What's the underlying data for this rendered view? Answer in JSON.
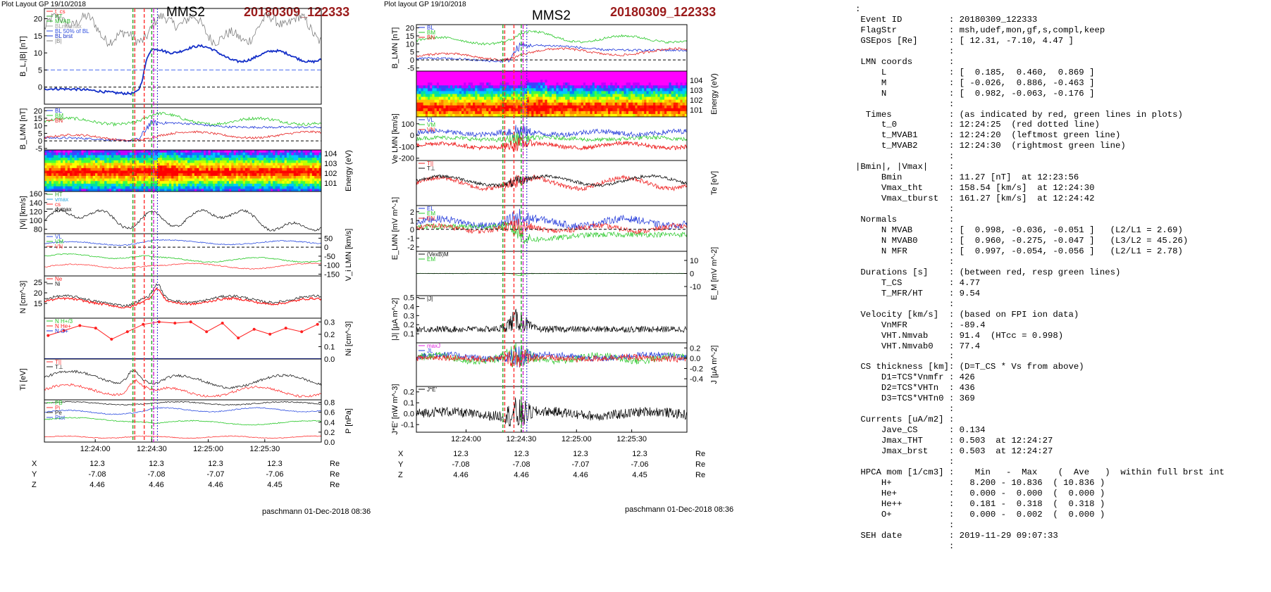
{
  "figures": [
    {
      "header": "Plot Layout GP 19/10/2018",
      "spacecraft": "MMS2",
      "event": "20180309_122333",
      "time_ticks": [
        "12:24:00",
        "12:24:30",
        "12:25:00",
        "12:25:30"
      ],
      "coords": [
        {
          "name": "X",
          "values": [
            "12.3",
            "12.3",
            "12.3",
            "12.3"
          ],
          "unit": "Re"
        },
        {
          "name": "Y",
          "values": [
            "-7.08",
            "-7.08",
            "-7.07",
            "-7.06"
          ],
          "unit": "Re"
        },
        {
          "name": "Z",
          "values": [
            "4.46",
            "4.46",
            "4.46",
            "4.45"
          ],
          "unit": "Re"
        }
      ],
      "footer": "paschmann 01-Dec-2018 08:36"
    },
    {
      "header": "Plot layout GP 19/10/2018",
      "spacecraft": "MMS2",
      "event": "20180309_122333",
      "time_ticks": [
        "12:24:00",
        "12:24:30",
        "12:25:00",
        "12:25:30"
      ],
      "coords": [
        {
          "name": "X",
          "values": [
            "12.3",
            "12.3",
            "12.3",
            "12.3"
          ],
          "unit": "Re"
        },
        {
          "name": "Y",
          "values": [
            "-7.08",
            "-7.08",
            "-7.07",
            "-7.06"
          ],
          "unit": "Re"
        },
        {
          "name": "Z",
          "values": [
            "4.46",
            "4.46",
            "4.46",
            "4.45"
          ],
          "unit": "Re"
        }
      ],
      "footer": "paschmann 01-Dec-2018 08:36"
    }
  ],
  "chart_data": [
    {
      "type": "line",
      "figure": "left",
      "x_range": [
        "12:23:33",
        "12:26:00"
      ],
      "markers": {
        "red_dotted": "12:24:25",
        "green_left": "12:24:20",
        "green_right": "12:24:30"
      },
      "panels": [
        {
          "ylabel": "B_L,|B| [nT]",
          "yticks": [
            "0",
            "5",
            "10",
            "15",
            "20"
          ],
          "ylim": [
            -5,
            23
          ],
          "legend": [
            "t_cs",
            "HT",
            "MVAB",
            "BLminmax",
            "BL 50% of BL",
            "BL brst",
            "|B|"
          ],
          "colors": {
            "total": "#808080",
            "BL": "#1530c8"
          }
        },
        {
          "ylabel": "B_LMN [nT]",
          "yticks": [
            "-5",
            "0",
            "5",
            "10",
            "15",
            "20"
          ],
          "ylim": [
            -6,
            22
          ],
          "legend": [
            "BL",
            "BM",
            "BN"
          ]
        },
        {
          "ylabel": "Energy (eV)",
          "type": "heatmap",
          "yticks": [
            "10^1",
            "10^2",
            "10^3",
            "10^4"
          ]
        },
        {
          "ylabel": "|Vi| [km/s]",
          "yticks": [
            "80",
            "100",
            "120",
            "140",
            "160"
          ],
          "ylim": [
            70,
            165
          ],
          "legend": [
            "HT",
            "vmax",
            "cs",
            "dvmax"
          ]
        },
        {
          "ylabel": "V_i LMN [km/s]",
          "yticks": [
            "50",
            "0",
            "-50",
            "-100",
            "-150"
          ],
          "ylim": [
            -160,
            75
          ],
          "legend": [
            "VL",
            "VM",
            "VN"
          ]
        },
        {
          "ylabel": "N [cm^-3]",
          "yticks": [
            "15",
            "20",
            "25"
          ],
          "ylim": [
            8,
            28
          ],
          "legend": [
            "Ne",
            "Ni"
          ]
        },
        {
          "ylabel": "Ni [cm^-3]",
          "yticks": [
            "0.0",
            "0.1",
            "0.2",
            "0.3"
          ],
          "ylim": [
            0,
            0.33
          ],
          "legend": [
            "N H+/3",
            "N He+",
            "N O+"
          ],
          "he_plus_values": [
            0.19,
            0.23,
            0.27,
            0.25,
            0.16,
            0.22,
            0.28,
            0.3,
            0.29,
            0.3,
            0.22,
            0.29,
            0.17,
            0.24,
            0.2,
            0.25,
            0.22,
            0.28
          ]
        },
        {
          "ylabel": "Ti [eV]",
          "legend": [
            "T||",
            "T⊥"
          ]
        },
        {
          "ylabel": "P [nPa]",
          "yticks": [
            "0.0",
            "0.2",
            "0.4",
            "0.6",
            "0.8"
          ],
          "ylim": [
            0,
            0.85
          ],
          "legend": [
            "PB",
            "Pi",
            "Pe",
            "Ptot"
          ]
        }
      ]
    },
    {
      "type": "line",
      "figure": "right",
      "x_range": [
        "12:23:33",
        "12:26:00"
      ],
      "markers": {
        "red_dotted": "12:24:25",
        "green_left": "12:24:20",
        "green_right": "12:24:30"
      },
      "panels": [
        {
          "ylabel": "B_LMN [nT]",
          "yticks": [
            "-5",
            "0",
            "5",
            "10",
            "15",
            "20"
          ],
          "ylim": [
            -7,
            22
          ],
          "legend": [
            "BL",
            "BM",
            "BN"
          ]
        },
        {
          "ylabel": "Energy (eV)",
          "type": "heatmap",
          "yticks": [
            "10^1",
            "10^2",
            "10^3",
            "10^4"
          ]
        },
        {
          "ylabel": "Ve LMN [km/s]",
          "yticks": [
            "-200",
            "-100",
            "0",
            "100"
          ],
          "ylim": [
            -220,
            160
          ],
          "legend": [
            "VL",
            "VM",
            "VN"
          ]
        },
        {
          "ylabel": "Te [eV]",
          "legend": [
            "T||",
            "T⊥"
          ]
        },
        {
          "ylabel": "E_LMN [mV m^-1]",
          "yticks": [
            "-2",
            "-1",
            "0",
            "1",
            "2"
          ],
          "ylim": [
            -2.5,
            2.7
          ],
          "legend": [
            "EL",
            "EM",
            "EN"
          ]
        },
        {
          "ylabel": "E_M [mV m^-2]",
          "yticks": [
            "-10",
            "0",
            "10"
          ],
          "ylim": [
            -17,
            17
          ],
          "legend": [
            "(VexB)M",
            "EM"
          ]
        },
        {
          "ylabel": "|J| [µA m^-2]",
          "yticks": [
            "0.1",
            "0.2",
            "0.3",
            "0.4",
            "0.5"
          ],
          "ylim": [
            0,
            0.52
          ],
          "legend": [
            "|J|"
          ]
        },
        {
          "ylabel": "J [µA m^-2]",
          "yticks": [
            "0.2",
            "0.0",
            "-0.2",
            "-0.4"
          ],
          "ylim": [
            -0.55,
            0.3
          ],
          "legend": [
            "maxJ",
            "JL",
            "JM"
          ]
        },
        {
          "ylabel": "J*E' [nW m^-3]",
          "yticks": [
            "-0.1",
            "0.0",
            "0.1",
            "0.2"
          ],
          "ylim": [
            -0.17,
            0.25
          ],
          "legend": [
            "J*E'"
          ]
        }
      ]
    }
  ],
  "info_lines": [
    ":",
    " Event ID         : 20180309_122333",
    " FlagStr          : msh,udef,mon,gf,s,compl,keep",
    " GSEpos [Re]      : [ 12.31, -7.10, 4.47 ]",
    "                  :",
    " LMN coords       :",
    "     L            : [  0.185,  0.460,  0.869 ]",
    "     M            : [ -0.026,  0.886, -0.463 ]",
    "     N            : [  0.982, -0.063, -0.176 ]",
    "                  :",
    "  Times           : (as indicated by red, green lines in plots)",
    "     t_0          : 12:24:25  (red dotted line)",
    "     t_MVAB1      : 12:24:20  (leftmost green line)",
    "     t_MVAB2      : 12:24:30  (rightmost green line)",
    "                  :",
    "|Bmin|, |Vmax|    :",
    "     Bmin         : 11.27 [nT]  at 12:23:56",
    "     Vmax_tht     : 158.54 [km/s]  at 12:24:30",
    "     Vmax_tburst  : 161.27 [km/s]  at 12:24:42",
    "                  :",
    " Normals          :",
    "     N MVAB       : [  0.998, -0.036, -0.051 ]   (L2/L1 = 2.69)",
    "     N MVAB0      : [  0.960, -0.275, -0.047 ]   (L3/L2 = 45.26)",
    "     N MFR        : [  0.997, -0.054, -0.056 ]   (L2/L1 = 2.78)",
    "                  :",
    " Durations [s]    : (between red, resp green lines)",
    "     T_CS         : 4.77",
    "     T_MFR/HT     : 9.54",
    "                  :",
    " Velocity [km/s]  : (based on FPI ion data)",
    "     VnMFR        : -89.4",
    "     VHT.Nmvab    : 91.4  (HTcc = 0.998)",
    "     VHT.Nmvab0   : 77.4",
    "                  :",
    " CS thickness [km]: (D=T_CS * Vs from above)",
    "     D1=TCS*Vnmfr : 426",
    "     D2=TCS*VHTn  : 436",
    "     D3=TCS*VHTn0 : 369",
    "                  :",
    " Currents [uA/m2] :",
    "     Jave_CS      : 0.134",
    "     Jmax_THT     : 0.503  at 12:24:27",
    "     Jmax_brst    : 0.503  at 12:24:27",
    "                  :",
    " HPCA mom [1/cm3] :    Min   -  Max    (  Ave   )  within full brst int",
    "     H+           :   8.200 - 10.836  ( 10.836 )",
    "     He+          :   0.000 -  0.000  (  0.000 )",
    "     He++         :   0.181 -  0.318  (  0.318 )",
    "     O+           :   0.000 -  0.002  (  0.000 )",
    "                  :",
    " SEH date         : 2019-11-29 09:07:33",
    "                  :"
  ]
}
